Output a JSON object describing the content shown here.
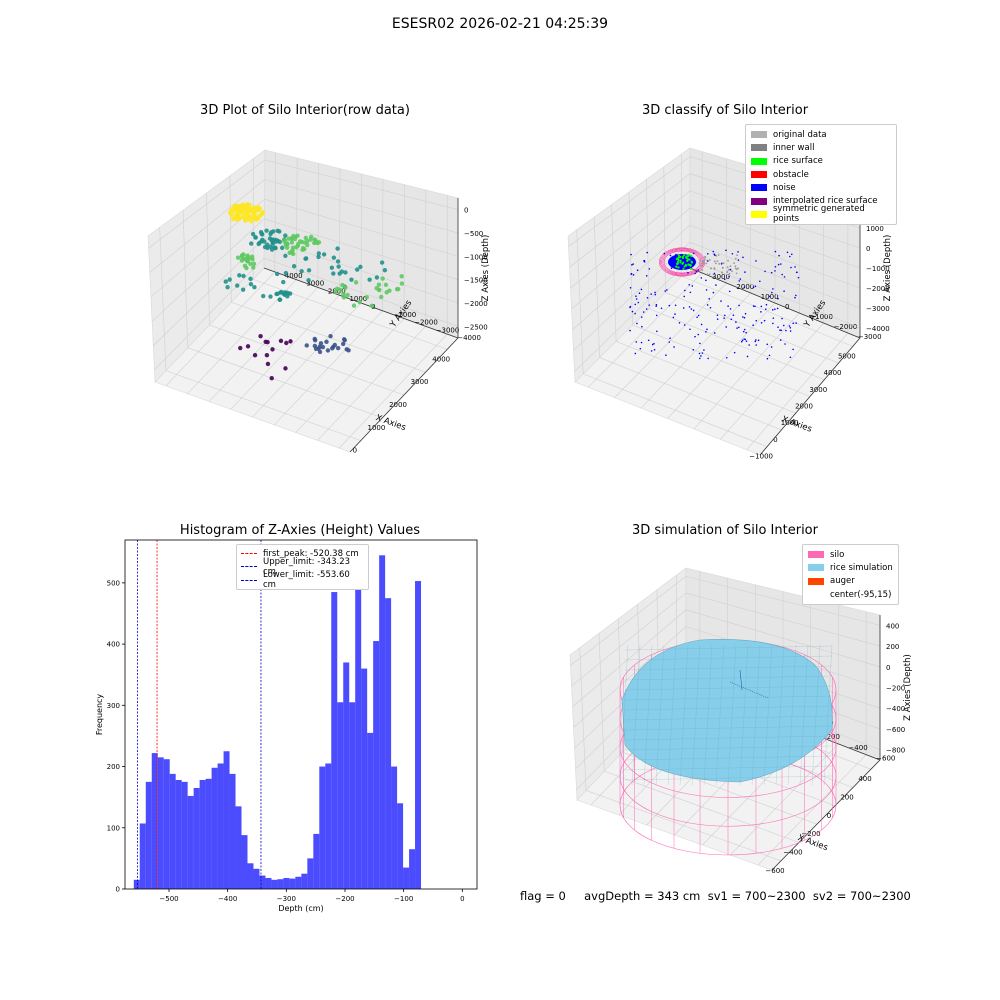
{
  "page": {
    "suptitle": "ESESR02 2026-02-21 04:25:39"
  },
  "status_text": "flag = 0     avgDepth = 343 cm  sv1 = 700~2300  sv2 = 700~2300",
  "chart_data": [
    {
      "id": "raw",
      "type": "scatter3d",
      "title": "3D Plot of Silo Interior(row data)",
      "xlabel": "X Axies",
      "ylabel": "Y Axies",
      "zlabel": "Z Axies (Depth)",
      "xticks": [
        "0",
        "1000",
        "2000",
        "3000",
        "4000"
      ],
      "yticks": [
        "−4000",
        "−3000",
        "−2000",
        "−1000",
        "0",
        "1000",
        "2000",
        "3000",
        "4000"
      ],
      "zticks": [
        "−2500",
        "−2000",
        "−1500",
        "−1000",
        "−500",
        "0"
      ],
      "colormap": "viridis",
      "grid": true
    },
    {
      "id": "classify",
      "type": "scatter3d",
      "title": "3D classify of Silo Interior",
      "xlabel": "X Axies",
      "ylabel": "Y Axies",
      "zlabel": "Z Axies (Depth)",
      "xticks": [
        "−1000",
        "0",
        "1000",
        "2000",
        "3000",
        "4000",
        "5000"
      ],
      "yticks": [
        "−3000",
        "−2000",
        "−1000",
        "0",
        "1000",
        "2000",
        "3000"
      ],
      "zticks": [
        "−4000",
        "−3000",
        "−2000",
        "−1000",
        "0",
        "1000",
        "2000"
      ],
      "legend_position": "top-right",
      "legend": [
        {
          "label": "original data",
          "color": "#b0b0b0"
        },
        {
          "label": "inner wall",
          "color": "#808080"
        },
        {
          "label": "rice surface",
          "color": "#00ff00"
        },
        {
          "label": "obstacle",
          "color": "#ff0000"
        },
        {
          "label": "noise",
          "color": "#0000ff"
        },
        {
          "label": "interpolated rice surface",
          "color": "#800080"
        },
        {
          "label": "symmetric generated points",
          "color": "#ffff00"
        }
      ],
      "grid": true
    },
    {
      "id": "hist",
      "type": "bar",
      "title": "Histogram of Z-Axies (Height) Values",
      "xlabel": "Depth (cm)",
      "ylabel": "Frequency",
      "xlim": [
        -575,
        25
      ],
      "ylim": [
        0,
        570
      ],
      "xticks": [
        -500,
        -400,
        -300,
        -200,
        -100,
        0
      ],
      "yticks": [
        0,
        100,
        200,
        300,
        400,
        500
      ],
      "bin_start": -560,
      "bin_width": 10.2,
      "values": [
        15,
        107,
        175,
        222,
        215,
        212,
        188,
        178,
        175,
        152,
        165,
        178,
        180,
        198,
        205,
        225,
        188,
        135,
        88,
        42,
        33,
        22,
        18,
        15,
        16,
        18,
        17,
        20,
        25,
        50,
        90,
        200,
        205,
        485,
        305,
        370,
        305,
        525,
        360,
        255,
        405,
        545,
        475,
        200,
        140,
        35,
        65,
        503
      ],
      "bar_color": "#0000ff",
      "vlines": [
        {
          "label": "first_peak: -520.38 cm",
          "x": -520.38,
          "color": "#ff0000"
        },
        {
          "label": "Upper_limit: -343.23 cm",
          "x": -343.23,
          "color": "#0000cc"
        },
        {
          "label": "Lower_limit: -553.60 cm",
          "x": -553.6,
          "color": "#0000cc"
        }
      ],
      "legend_position": "top-center"
    },
    {
      "id": "sim",
      "type": "surface3d",
      "title": "3D simulation of Silo Interior",
      "xlabel": "X Axies",
      "ylabel": "Y Axies",
      "zlabel": "Z Axies (Depth)",
      "xticks": [
        "−600",
        "−400",
        "−200",
        "0",
        "200",
        "400"
      ],
      "yticks": [
        "−600",
        "−400",
        "−200",
        "0",
        "200",
        "400",
        "600"
      ],
      "zticks": [
        "−800",
        "−600",
        "−400",
        "−200",
        "0",
        "200",
        "400"
      ],
      "legend_position": "top-right",
      "legend": [
        {
          "label": "silo",
          "color": "#ff69b4"
        },
        {
          "label": "rice simulation",
          "color": "#87ceeb"
        },
        {
          "label": "auger",
          "color": "#ff4500"
        },
        {
          "label": "center(-95,15)",
          "color": ""
        }
      ],
      "grid": true
    }
  ]
}
